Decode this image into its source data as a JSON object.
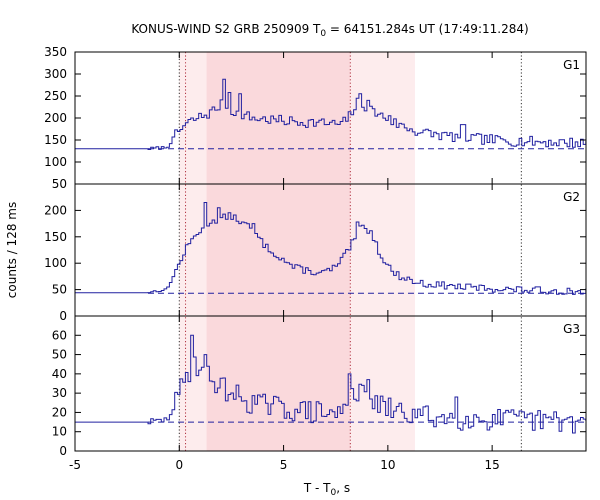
{
  "title": {
    "prefix": "KONUS-WIND S2 GRB 250909 T",
    "sub": "0",
    "suffix": " = 64151.284s UT (17:49:11.284)"
  },
  "x_axis": {
    "label_prefix": "T - T",
    "label_sub": "0",
    "label_suffix": ", s",
    "range": [
      -5,
      19.5
    ],
    "ticks": [
      -5,
      0,
      5,
      10,
      15
    ],
    "tick_labels": [
      "-5",
      "0",
      "5",
      "10",
      "15"
    ]
  },
  "y_axis": {
    "label": "counts / 128 ms"
  },
  "colors": {
    "series": "#2020a0",
    "background_line": "#2020a0",
    "shade_dark": "#fad9dc",
    "shade_light": "#fdeced",
    "marker_black": "#333333",
    "marker_red": "#b03040"
  },
  "chart_data": {
    "type": "line",
    "style": "step histogram",
    "bin_width_s": 0.128,
    "shaded_regions": [
      {
        "x0": 1.3,
        "x1": 8.2,
        "tone": "dark"
      },
      {
        "x0": 8.2,
        "x1": 11.3,
        "tone": "light"
      },
      {
        "x0": 0.0,
        "x1": 1.3,
        "tone": "light"
      }
    ],
    "vlines": [
      {
        "x": 0.0,
        "color": "black"
      },
      {
        "x": 0.3,
        "color": "red"
      },
      {
        "x": 8.2,
        "color": "red"
      },
      {
        "x": 16.4,
        "color": "black"
      }
    ],
    "panels": [
      {
        "name": "G1",
        "ylim": [
          50,
          350
        ],
        "yticks": [
          50,
          100,
          150,
          200,
          250,
          300,
          350
        ],
        "ytick_labels": [
          "50",
          "100",
          "150",
          "200",
          "250",
          "300",
          "350"
        ],
        "background": 130,
        "pre_level": 130,
        "rise_start": -1.5,
        "anchors": [
          [
            -1.5,
            130
          ],
          [
            -0.6,
            133
          ],
          [
            -0.1,
            165
          ],
          [
            0.3,
            185
          ],
          [
            0.8,
            198
          ],
          [
            1.5,
            212
          ],
          [
            2.0,
            230
          ],
          [
            2.5,
            218
          ],
          [
            3.5,
            200
          ],
          [
            5.0,
            193
          ],
          [
            6.5,
            190
          ],
          [
            7.8,
            185
          ],
          [
            8.1,
            200
          ],
          [
            8.6,
            238
          ],
          [
            9.3,
            215
          ],
          [
            10.5,
            185
          ],
          [
            11.5,
            168
          ],
          [
            13.0,
            158
          ],
          [
            15.0,
            150
          ],
          [
            17.0,
            146
          ],
          [
            19.5,
            143
          ]
        ],
        "spikes": [
          [
            2.1,
            288
          ],
          [
            2.4,
            258
          ],
          [
            2.9,
            255
          ],
          [
            8.7,
            255
          ],
          [
            9.1,
            240
          ],
          [
            10.1,
            205
          ],
          [
            13.6,
            185
          ]
        ],
        "noise": 9,
        "seed": 7
      },
      {
        "name": "G2",
        "ylim": [
          0,
          250
        ],
        "yticks": [
          0,
          50,
          100,
          150,
          200
        ],
        "ytick_labels": [
          "0",
          "50",
          "100",
          "150",
          "200"
        ],
        "background": 43,
        "pre_level": 44,
        "rise_start": -1.5,
        "anchors": [
          [
            -1.5,
            45
          ],
          [
            -0.6,
            50
          ],
          [
            -0.1,
            90
          ],
          [
            0.3,
            125
          ],
          [
            0.8,
            155
          ],
          [
            1.5,
            180
          ],
          [
            2.5,
            190
          ],
          [
            3.3,
            170
          ],
          [
            4.2,
            130
          ],
          [
            5.5,
            92
          ],
          [
            6.8,
            80
          ],
          [
            7.6,
            95
          ],
          [
            8.2,
            130
          ],
          [
            8.7,
            170
          ],
          [
            9.2,
            160
          ],
          [
            9.6,
            120
          ],
          [
            10.3,
            80
          ],
          [
            11.5,
            62
          ],
          [
            13.5,
            55
          ],
          [
            16.0,
            50
          ],
          [
            19.5,
            46
          ]
        ],
        "spikes": [
          [
            1.2,
            215
          ],
          [
            1.9,
            205
          ],
          [
            3.6,
            175
          ],
          [
            8.6,
            178
          ]
        ],
        "noise": 5,
        "seed": 13
      },
      {
        "name": "G3",
        "ylim": [
          0,
          70
        ],
        "yticks": [
          0,
          10,
          20,
          30,
          40,
          50,
          60
        ],
        "ytick_labels": [
          "0",
          "10",
          "20",
          "30",
          "40",
          "50",
          "60"
        ],
        "background": 15,
        "pre_level": 15,
        "rise_start": -1.5,
        "anchors": [
          [
            -1.5,
            15
          ],
          [
            -0.6,
            16
          ],
          [
            -0.1,
            26
          ],
          [
            0.3,
            38
          ],
          [
            0.7,
            46
          ],
          [
            1.2,
            42
          ],
          [
            1.8,
            35
          ],
          [
            2.5,
            30
          ],
          [
            3.5,
            25
          ],
          [
            5.0,
            22
          ],
          [
            6.5,
            20
          ],
          [
            7.8,
            19
          ],
          [
            8.2,
            34
          ],
          [
            8.6,
            30
          ],
          [
            9.3,
            24
          ],
          [
            11.0,
            19
          ],
          [
            13.0,
            17
          ],
          [
            16.0,
            16
          ],
          [
            19.5,
            15
          ]
        ],
        "spikes": [
          [
            0.6,
            60
          ],
          [
            1.3,
            50
          ],
          [
            9.1,
            37
          ],
          [
            13.3,
            28
          ],
          [
            8.2,
            40
          ]
        ],
        "noise": 4.5,
        "seed": 29
      }
    ]
  }
}
